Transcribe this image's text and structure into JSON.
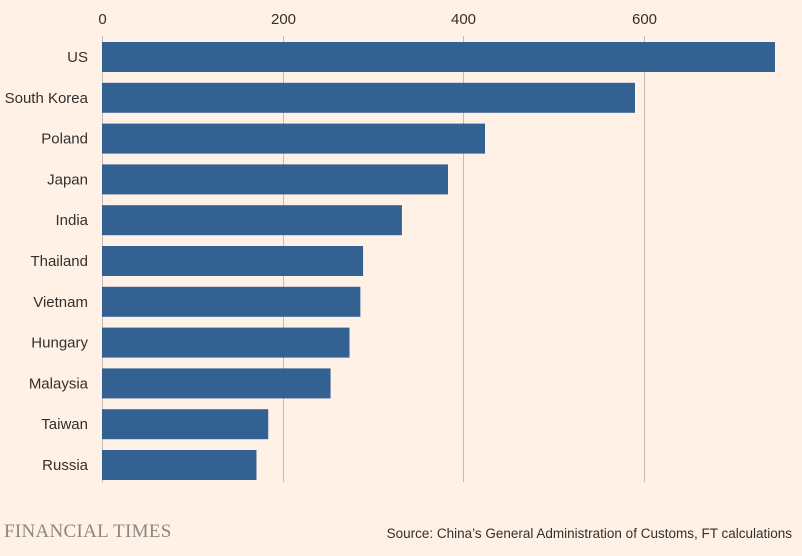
{
  "chart_data": {
    "type": "bar",
    "orientation": "horizontal",
    "title": "",
    "xlabel": "",
    "ylabel": "",
    "categories": [
      "US",
      "South Korea",
      "Poland",
      "Japan",
      "India",
      "Thailand",
      "Vietnam",
      "Hungary",
      "Malaysia",
      "Taiwan",
      "Russia"
    ],
    "values": [
      745,
      590,
      424,
      383,
      332,
      289,
      286,
      274,
      253,
      184,
      171
    ],
    "xlim": [
      0,
      745
    ],
    "xticks": [
      0,
      200,
      400,
      600
    ],
    "xtick_labels": [
      "0",
      "200",
      "400",
      "600"
    ],
    "grid": true,
    "bar_color": "#24578c"
  },
  "footer": {
    "logo_text": "FINANCIAL TIMES",
    "source_text": "Source: China’s General Administration of Customs, FT calculations"
  },
  "colors": {
    "background": "#fff1e5",
    "bar": "#24578c",
    "gridline": "#c2bcb7",
    "text": "#33302e",
    "logo": "#8c8681"
  }
}
